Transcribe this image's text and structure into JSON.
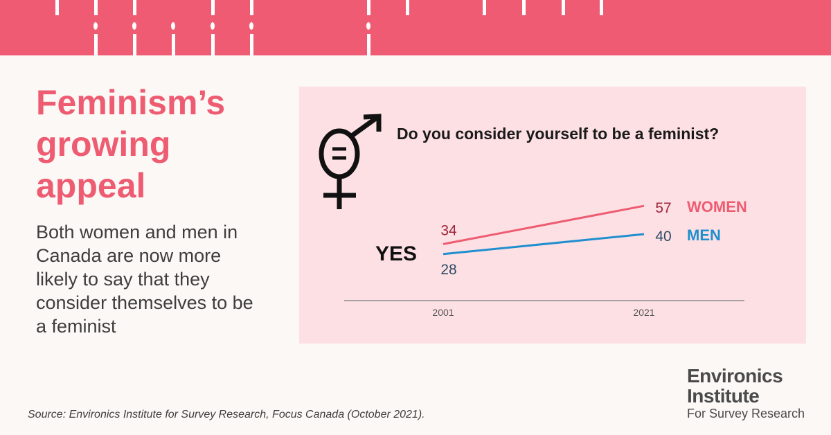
{
  "header": {
    "title_lines": [
      "Feminism’s",
      "growing",
      "appeal"
    ],
    "description": "Both women and men in Canada are now more likely to say that they consider themselves to be a feminist"
  },
  "chart_data": {
    "type": "line",
    "title": "Do you consider yourself to be a feminist?",
    "row_label": "YES",
    "categories": [
      "2001",
      "2021"
    ],
    "series": [
      {
        "name": "WOMEN",
        "values": [
          34,
          57
        ],
        "color": "#ee5c72",
        "label_color": "#a0253a"
      },
      {
        "name": "MEN",
        "values": [
          28,
          40
        ],
        "color": "#1f8fcf",
        "label_color": "#2d4b66"
      }
    ],
    "ylim": [
      0,
      60
    ],
    "grid": false,
    "legend": "right"
  },
  "icon": "gender-equality-icon",
  "colors": {
    "brand": "#ef5b73",
    "panel": "#fde0e4"
  },
  "source": "Source: Environics Institute for Survey Research, Focus Canada (October 2021).",
  "logo": {
    "line1": "Environics",
    "line2": "Institute",
    "line3": "For Survey Research"
  }
}
